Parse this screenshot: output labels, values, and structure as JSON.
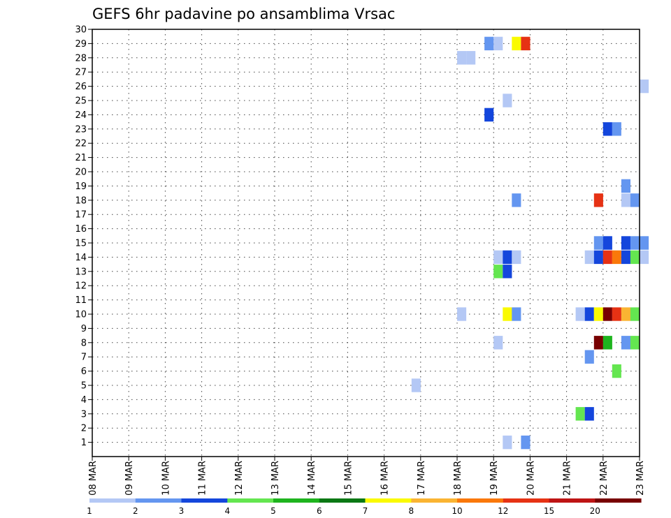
{
  "chart_data": {
    "type": "heatmap",
    "title": "GEFS 6hr padavine po ansamblima Vrsac",
    "xlabel": "",
    "ylabel": "",
    "x_start": "2018-03-08",
    "x_end": "2018-03-23",
    "x_ticks": [
      "08 MAR",
      "09 MAR",
      "10 MAR",
      "11 MAR",
      "12 MAR",
      "13 MAR",
      "14 MAR",
      "15 MAR",
      "16 MAR",
      "17 MAR",
      "18 MAR",
      "19 MAR",
      "20 MAR",
      "21 MAR",
      "22 MAR",
      "23 MAR"
    ],
    "y_ticks": [
      "1",
      "2",
      "3",
      "4",
      "5",
      "6",
      "7",
      "8",
      "9",
      "10",
      "11",
      "12",
      "13",
      "14",
      "15",
      "16",
      "17",
      "18",
      "19",
      "20",
      "21",
      "22",
      "23",
      "24",
      "25",
      "26",
      "27",
      "28",
      "29",
      "30"
    ],
    "ylim": [
      0,
      30
    ],
    "grid": true,
    "legend": {
      "placement": "bottom",
      "colors": [
        "#b4c8f5",
        "#6496f0",
        "#1446dc",
        "#64e650",
        "#1eb41e",
        "#0a7814",
        "#fafa00",
        "#fab432",
        "#fa780a",
        "#e63214",
        "#be1414",
        "#780000"
      ],
      "labels": [
        "1",
        "2",
        "3",
        "4",
        "5",
        "6",
        "7",
        "8",
        "10",
        "12",
        "15",
        "20"
      ]
    },
    "cells": [
      [
        "2018-03-18 18:00",
        29,
        2
      ],
      [
        "2018-03-19 00:00",
        29,
        1
      ],
      [
        "2018-03-19 12:00",
        29,
        7
      ],
      [
        "2018-03-19 18:00",
        29,
        12
      ],
      [
        "2018-03-18 00:00",
        28,
        1
      ],
      [
        "2018-03-18 06:00",
        28,
        1
      ],
      [
        "2018-03-23 00:00",
        26,
        1
      ],
      [
        "2018-03-19 06:00",
        25,
        1
      ],
      [
        "2018-03-18 18:00",
        24,
        3
      ],
      [
        "2018-03-22 00:00",
        23,
        3
      ],
      [
        "2018-03-22 06:00",
        23,
        2
      ],
      [
        "2018-03-22 12:00",
        19,
        2
      ],
      [
        "2018-03-19 12:00",
        18,
        2
      ],
      [
        "2018-03-21 18:00",
        18,
        12
      ],
      [
        "2018-03-22 12:00",
        18,
        1
      ],
      [
        "2018-03-22 18:00",
        18,
        2
      ],
      [
        "2018-03-21 18:00",
        15,
        2
      ],
      [
        "2018-03-22 00:00",
        15,
        3
      ],
      [
        "2018-03-22 12:00",
        15,
        3
      ],
      [
        "2018-03-22 18:00",
        15,
        2
      ],
      [
        "2018-03-23 00:00",
        15,
        2
      ],
      [
        "2018-03-19 00:00",
        14,
        1
      ],
      [
        "2018-03-19 06:00",
        14,
        3
      ],
      [
        "2018-03-19 12:00",
        14,
        1
      ],
      [
        "2018-03-21 12:00",
        14,
        1
      ],
      [
        "2018-03-21 18:00",
        14,
        3
      ],
      [
        "2018-03-22 00:00",
        14,
        12
      ],
      [
        "2018-03-22 06:00",
        14,
        10
      ],
      [
        "2018-03-22 12:00",
        14,
        3
      ],
      [
        "2018-03-22 18:00",
        14,
        4
      ],
      [
        "2018-03-23 00:00",
        14,
        1
      ],
      [
        "2018-03-19 00:00",
        13,
        4
      ],
      [
        "2018-03-19 06:00",
        13,
        3
      ],
      [
        "2018-03-18 00:00",
        10,
        1
      ],
      [
        "2018-03-19 06:00",
        10,
        7
      ],
      [
        "2018-03-19 12:00",
        10,
        2
      ],
      [
        "2018-03-21 06:00",
        10,
        1
      ],
      [
        "2018-03-21 12:00",
        10,
        3
      ],
      [
        "2018-03-21 18:00",
        10,
        7
      ],
      [
        "2018-03-22 00:00",
        10,
        20
      ],
      [
        "2018-03-22 06:00",
        10,
        12
      ],
      [
        "2018-03-22 12:00",
        10,
        8
      ],
      [
        "2018-03-22 18:00",
        10,
        4
      ],
      [
        "2018-03-19 00:00",
        8,
        1
      ],
      [
        "2018-03-21 18:00",
        8,
        20
      ],
      [
        "2018-03-22 00:00",
        8,
        5
      ],
      [
        "2018-03-22 12:00",
        8,
        2
      ],
      [
        "2018-03-22 18:00",
        8,
        4
      ],
      [
        "2018-03-21 12:00",
        7,
        2
      ],
      [
        "2018-03-22 06:00",
        6,
        4
      ],
      [
        "2018-03-16 18:00",
        5,
        1
      ],
      [
        "2018-03-21 06:00",
        3,
        4
      ],
      [
        "2018-03-21 12:00",
        3,
        3
      ],
      [
        "2018-03-19 06:00",
        1,
        1
      ],
      [
        "2018-03-19 18:00",
        1,
        2
      ]
    ]
  }
}
